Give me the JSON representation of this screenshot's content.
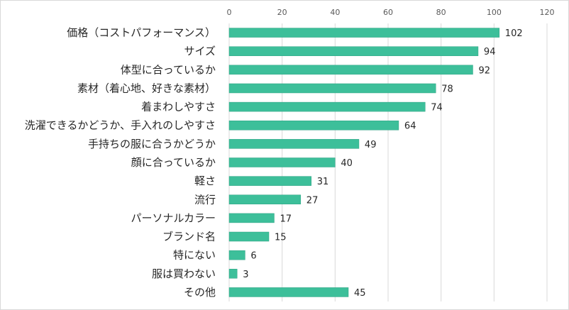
{
  "chart_data": {
    "type": "bar",
    "orientation": "horizontal",
    "title": "",
    "xlabel": "",
    "ylabel": "",
    "categories": [
      "価格（コストパフォーマンス）",
      "サイズ",
      "体型に合っているか",
      "素材（着心地、好きな素材）",
      "着まわしやすさ",
      "洗濯できるかどうか、手入れのしやすさ",
      "手持ちの服に合うかどうか",
      "顔に合っているか",
      "軽さ",
      "流行",
      "パーソナルカラー",
      "ブランド名",
      "特にない",
      "服は買わない",
      "その他"
    ],
    "values": [
      102,
      94,
      92,
      78,
      74,
      64,
      49,
      40,
      31,
      27,
      17,
      15,
      6,
      3,
      45
    ],
    "xlim": [
      0,
      120
    ],
    "xticks": [
      0,
      20,
      40,
      60,
      80,
      100,
      120
    ],
    "axis_position": "top",
    "grid": true,
    "legend": "none",
    "data_labels": true,
    "colors": {
      "bar": "#3dbf9a",
      "bar_edge": "#2ea283",
      "grid": "#d9d9d9",
      "axis_text": "#595959",
      "label_text": "#262626"
    }
  }
}
